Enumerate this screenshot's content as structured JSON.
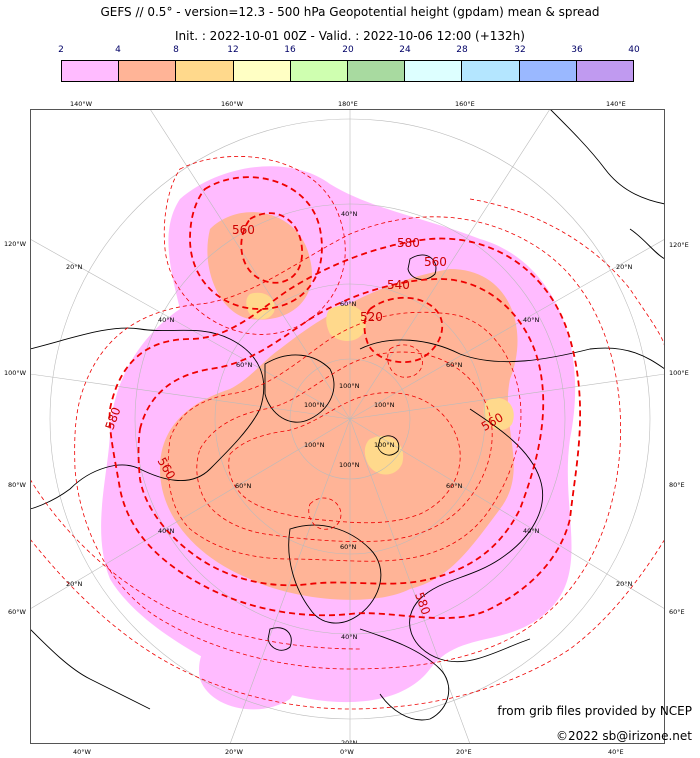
{
  "title": {
    "line1": "GEFS // 0.5° - version=12.3 - 500 hPa Geopotential height (gpdam) mean & spread",
    "line2": "Init. : 2022-10-01 00Z - Valid. : 2022-10-06 12:00 (+132h)"
  },
  "colorbar": {
    "ticks": [
      "2",
      "4",
      "8",
      "12",
      "16",
      "20",
      "24",
      "28",
      "32",
      "36",
      "40"
    ],
    "colors": [
      "#ffbbff",
      "#ffb497",
      "#ffd98c",
      "#ffffc4",
      "#cfffb0",
      "#a8daa0",
      "#ddffff",
      "#b4e6ff",
      "#9ab8ff",
      "#c09af0"
    ]
  },
  "graticule": {
    "top": [
      "140°W",
      "160°W",
      "180°E",
      "160°E",
      "140°E"
    ],
    "left": [
      "120°W",
      "100°W",
      "80°W",
      "60°W"
    ],
    "right": [
      "120°E",
      "100°E",
      "80°E",
      "60°E"
    ],
    "bottom": [
      "40°W",
      "20°W",
      "0°W",
      "20°E",
      "40°E"
    ],
    "lat_labels": [
      "20°N",
      "40°N",
      "60°N",
      "100°N"
    ]
  },
  "contours": {
    "labels": [
      "560",
      "580",
      "560",
      "540",
      "520",
      "580",
      "560",
      "560",
      "580"
    ]
  },
  "colors": {
    "spread_low": "#ffbbff",
    "spread_mid": "#ffb497",
    "spread_high": "#ffd98c",
    "contour": "#ee0000"
  },
  "credits": {
    "line1": "from grib files provided by NCEP",
    "line2": "©2022 sb@irizone.net"
  }
}
